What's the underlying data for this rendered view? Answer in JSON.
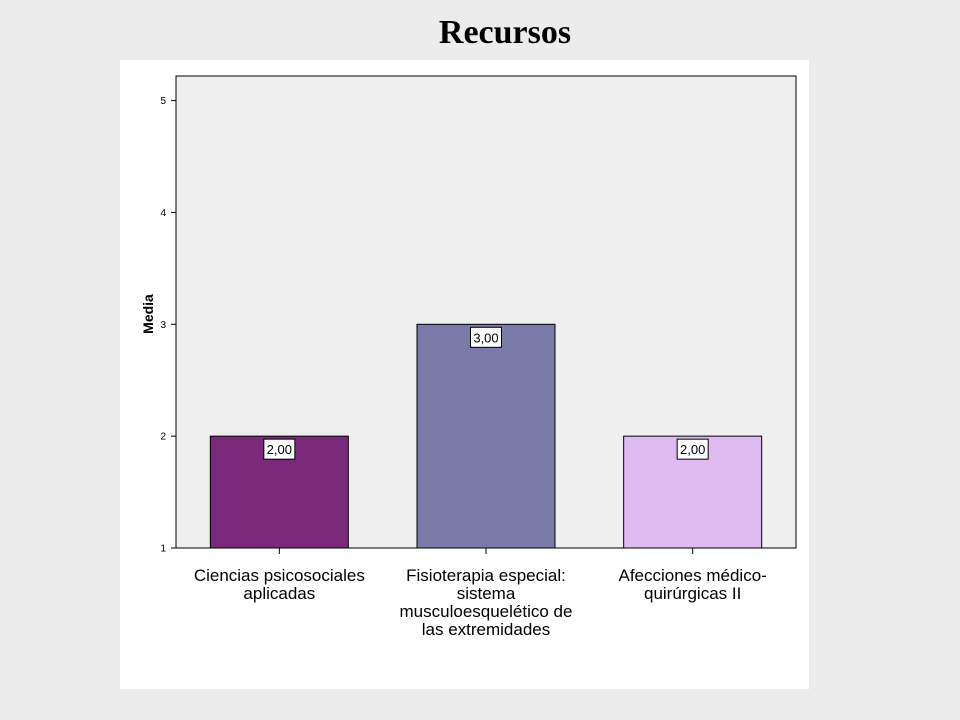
{
  "title": "Recursos",
  "chart_data": {
    "type": "bar",
    "title": "Recursos",
    "xlabel": "",
    "ylabel": "Media",
    "ylim": [
      1,
      5.22
    ],
    "yticks": [
      "1",
      "2",
      "3",
      "4",
      "5"
    ],
    "categories": [
      [
        "Ciencias psicosociales",
        "aplicadas"
      ],
      [
        "Fisioterapia especial:",
        "sistema",
        "musculoesquelético de",
        "las extremidades"
      ],
      [
        "Afecciones médico-",
        "quirúrgicas II"
      ]
    ],
    "values": [
      2.0,
      3.0,
      2.0
    ],
    "value_labels": [
      "2,00",
      "3,00",
      "2,00"
    ],
    "colors": [
      "#7b2a7b",
      "#7b7ba9",
      "#dfbbf1"
    ],
    "grid": false,
    "plot_background": "#efefef"
  }
}
